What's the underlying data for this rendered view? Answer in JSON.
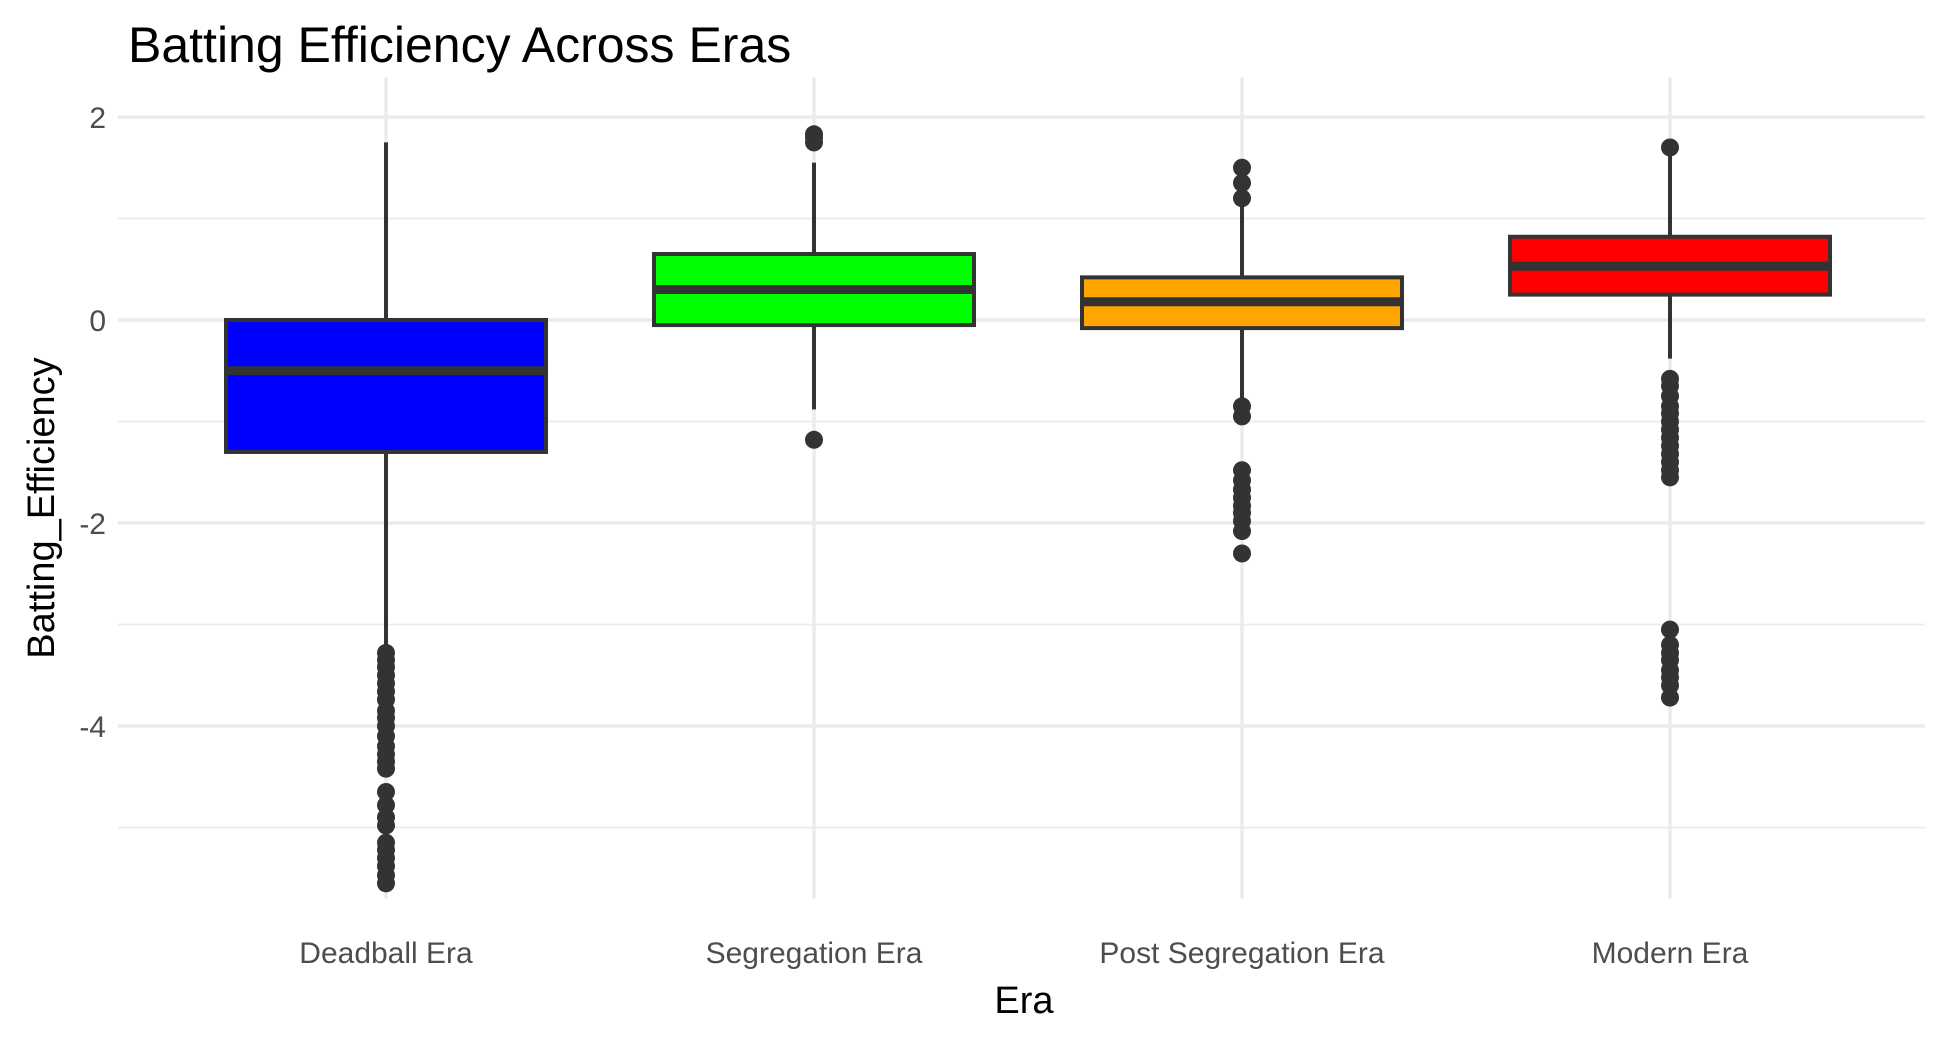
{
  "chart_data": {
    "type": "boxplot",
    "title": "Batting Efficiency Across Eras",
    "xlabel": "Era",
    "ylabel": "Batting_Efficiency",
    "categories": [
      "Deadball Era",
      "Segregation Era",
      "Post Segregation Era",
      "Modern Era"
    ],
    "ylim": [
      -5.7,
      2.2
    ],
    "y_ticks": [
      2,
      0,
      -2,
      -4
    ],
    "y_tick_labels": [
      "2",
      "0",
      "-2",
      "-4"
    ],
    "grid": true,
    "legend": "none",
    "boxes": [
      {
        "category": "Deadball Era",
        "color": "#0000FF",
        "q1": -1.3,
        "median": -0.5,
        "q3": 0.0,
        "whisker_low": -3.25,
        "whisker_high": 1.75,
        "outliers": [
          -3.28,
          -3.35,
          -3.42,
          -3.5,
          -3.58,
          -3.66,
          -3.74,
          -3.85,
          -3.92,
          -4.0,
          -4.1,
          -4.2,
          -4.28,
          -4.35,
          -4.42,
          -4.65,
          -4.78,
          -4.9,
          -4.98,
          -5.15,
          -5.22,
          -5.3,
          -5.38,
          -5.47,
          -5.55
        ]
      },
      {
        "category": "Segregation Era",
        "color": "#00FF00",
        "q1": -0.05,
        "median": 0.3,
        "q3": 0.65,
        "whisker_low": -0.88,
        "whisker_high": 1.55,
        "outliers": [
          1.75,
          1.8,
          1.83,
          -1.18
        ]
      },
      {
        "category": "Post Segregation Era",
        "color": "#FFA500",
        "q1": -0.08,
        "median": 0.18,
        "q3": 0.42,
        "whisker_low": -0.82,
        "whisker_high": 1.15,
        "outliers": [
          1.2,
          1.35,
          1.5,
          -0.85,
          -0.95,
          -1.48,
          -1.58,
          -1.67,
          -1.75,
          -1.83,
          -1.9,
          -1.98,
          -2.08,
          -2.3
        ]
      },
      {
        "category": "Modern Era",
        "color": "#FF0000",
        "q1": 0.25,
        "median": 0.53,
        "q3": 0.82,
        "whisker_low": -0.38,
        "whisker_high": 1.65,
        "outliers": [
          1.7,
          -0.58,
          -0.65,
          -0.75,
          -0.85,
          -0.92,
          -1.0,
          -1.08,
          -1.16,
          -1.24,
          -1.32,
          -1.4,
          -1.48,
          -1.55,
          -3.05,
          -3.2,
          -3.28,
          -3.35,
          -3.45,
          -3.52,
          -3.6,
          -3.72
        ]
      }
    ]
  }
}
